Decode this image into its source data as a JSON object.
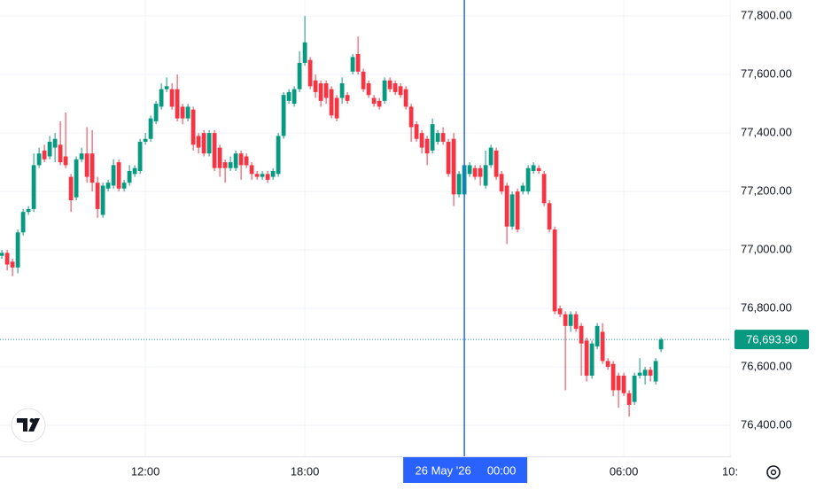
{
  "chart_data": {
    "type": "candlestick",
    "up_color": "#089981",
    "down_color": "#f23645",
    "grid": true,
    "grid_color": "#f0f3fa",
    "xlim": [
      6.53,
      34.03
    ],
    "ylim": [
      76294,
      77855
    ],
    "xticks": [
      {
        "value": 12,
        "label": "12:00"
      },
      {
        "value": 18,
        "label": "18:00"
      },
      {
        "value": 30,
        "label": "06:00"
      },
      {
        "value": 34,
        "label": "10:"
      }
    ],
    "yticks": [
      {
        "value": 76400,
        "label": "76,400.00"
      },
      {
        "value": 76600,
        "label": "76,600.00"
      },
      {
        "value": 76800,
        "label": "76,800.00"
      },
      {
        "value": 77000,
        "label": "77,000.00"
      },
      {
        "value": 77200,
        "label": "77,200.00"
      },
      {
        "value": 77400,
        "label": "77,400.00"
      },
      {
        "value": 77600,
        "label": "77,600.00"
      },
      {
        "value": 77800,
        "label": "77,800.00"
      }
    ],
    "crosshair": {
      "value": 24,
      "date_label": "26 May '26",
      "time_label": "00:00",
      "color": "#2962ff"
    },
    "last_price": {
      "value": 76693.9,
      "label": "76,693.90"
    },
    "x": [
      6.6,
      6.8,
      7,
      7.2,
      7.4,
      7.6,
      7.8,
      8,
      8.2,
      8.4,
      8.6,
      8.8,
      9,
      9.2,
      9.4,
      9.6,
      9.8,
      10,
      10.2,
      10.4,
      10.6,
      10.8,
      11,
      11.2,
      11.4,
      11.6,
      11.8,
      12,
      12.2,
      12.4,
      12.6,
      12.8,
      13,
      13.2,
      13.4,
      13.6,
      13.8,
      14,
      14.2,
      14.4,
      14.6,
      14.8,
      15,
      15.2,
      15.4,
      15.6,
      15.8,
      16,
      16.2,
      16.4,
      16.6,
      16.8,
      17,
      17.2,
      17.4,
      17.6,
      17.8,
      18,
      18.2,
      18.4,
      18.6,
      18.8,
      19,
      19.2,
      19.4,
      19.6,
      19.8,
      20,
      20.2,
      20.4,
      20.6,
      20.8,
      21,
      21.2,
      21.4,
      21.6,
      21.8,
      22,
      22.2,
      22.4,
      22.6,
      22.8,
      23,
      23.2,
      23.4,
      23.6,
      23.8,
      24,
      24.2,
      24.4,
      24.6,
      24.8,
      25,
      25.2,
      25.4,
      25.6,
      25.8,
      26,
      26.2,
      26.4,
      26.6,
      26.8,
      27,
      27.2,
      27.4,
      27.6,
      27.8,
      28,
      28.2,
      28.4,
      28.6,
      28.8,
      29,
      29.2,
      29.4,
      29.6,
      29.8,
      30,
      30.2,
      30.4,
      30.6,
      30.8,
      31,
      31.2,
      31.4
    ],
    "open": [
      76980,
      76990,
      76960,
      76940,
      77060,
      77130,
      77140,
      77290,
      77340,
      77320,
      77350,
      77360,
      77320,
      77250,
      77180,
      77310,
      77330,
      77330,
      77230,
      77120,
      77210,
      77220,
      77300,
      77210,
      77230,
      77260,
      77270,
      77370,
      77380,
      77440,
      77490,
      77550,
      77550,
      77550,
      77490,
      77450,
      77480,
      77390,
      77400,
      77330,
      77400,
      77350,
      77300,
      77280,
      77280,
      77330,
      77320,
      77290,
      77260,
      77250,
      77260,
      77250,
      77260,
      77390,
      77510,
      77500,
      77550,
      77640,
      77650,
      77580,
      77570,
      77570,
      77550,
      77520,
      77520,
      77530,
      77610,
      77670,
      77610,
      77570,
      77520,
      77510,
      77510,
      77580,
      77570,
      77560,
      77550,
      77490,
      77430,
      77400,
      77380,
      77340,
      77370,
      77400,
      77370,
      77380,
      77190,
      77190,
      77260,
      77280,
      77280,
      77220,
      77290,
      77340,
      77260,
      77220,
      77080,
      77200,
      77200,
      77200,
      77270,
      77280,
      77260,
      77160,
      77070,
      76800,
      76780,
      76740,
      76780,
      76740,
      76690,
      76570,
      76670,
      76720,
      76620,
      76610,
      76570,
      76570,
      76510,
      76480,
      76570,
      76570,
      76590,
      76550,
      76660
    ],
    "high": [
      77000,
      77000,
      76970,
      77070,
      77140,
      77150,
      77330,
      77350,
      77360,
      77390,
      77400,
      77440,
      77470,
      77260,
      77320,
      77350,
      77420,
      77410,
      77250,
      77230,
      77240,
      77310,
      77310,
      77240,
      77290,
      77290,
      77380,
      77400,
      77460,
      77510,
      77570,
      77590,
      77570,
      77600,
      77500,
      77500,
      77490,
      77400,
      77410,
      77410,
      77410,
      77360,
      77310,
      77320,
      77340,
      77340,
      77330,
      77300,
      77270,
      77270,
      77270,
      77280,
      77400,
      77540,
      77550,
      77560,
      77680,
      77800,
      77660,
      77600,
      77580,
      77580,
      77560,
      77530,
      77590,
      77540,
      77670,
      77730,
      77620,
      77580,
      77530,
      77520,
      77590,
      77590,
      77580,
      77570,
      77560,
      77500,
      77440,
      77410,
      77390,
      77450,
      77410,
      77420,
      77380,
      77400,
      77270,
      77300,
      77300,
      77290,
      77290,
      77340,
      77360,
      77350,
      77270,
      77230,
      77200,
      77210,
      77230,
      77290,
      77300,
      77290,
      77270,
      77170,
      77080,
      76810,
      76790,
      76790,
      76790,
      76750,
      76700,
      76690,
      76750,
      76750,
      76630,
      76620,
      76580,
      76580,
      76520,
      76580,
      76630,
      76600,
      76600,
      76630,
      76700
    ],
    "low": [
      76970,
      76930,
      76910,
      76920,
      77050,
      77120,
      77130,
      77280,
      77300,
      77310,
      77300,
      77290,
      77280,
      77130,
      77170,
      77300,
      77230,
      77200,
      77110,
      77110,
      77200,
      77210,
      77200,
      77200,
      77220,
      77250,
      77260,
      77360,
      77370,
      77430,
      77480,
      77540,
      77480,
      77440,
      77430,
      77440,
      77340,
      77330,
      77320,
      77320,
      77270,
      77250,
      77230,
      77270,
      77270,
      77240,
      77280,
      77240,
      77240,
      77240,
      77230,
      77240,
      77250,
      77380,
      77500,
      77490,
      77540,
      77630,
      77550,
      77520,
      77490,
      77500,
      77450,
      77440,
      77500,
      77500,
      77600,
      77600,
      77540,
      77520,
      77490,
      77480,
      77500,
      77540,
      77530,
      77520,
      77480,
      77370,
      77370,
      77330,
      77290,
      77330,
      77360,
      77360,
      77250,
      77150,
      77180,
      77180,
      77250,
      77240,
      77220,
      77210,
      77280,
      77240,
      77190,
      77020,
      77070,
      77060,
      77190,
      77190,
      77260,
      77260,
      77150,
      77060,
      76780,
      76770,
      76520,
      76720,
      76720,
      76570,
      76550,
      76560,
      76660,
      76610,
      76590,
      76500,
      76460,
      76500,
      76430,
      76470,
      76560,
      76540,
      76550,
      76540,
      76650
    ],
    "close": [
      76990,
      76950,
      76940,
      77060,
      77130,
      77140,
      77290,
      77330,
      77310,
      77370,
      77380,
      77300,
      77290,
      77170,
      77310,
      77330,
      77250,
      77230,
      77140,
      77220,
      77230,
      77290,
      77210,
      77230,
      77270,
      77280,
      77370,
      77380,
      77450,
      77500,
      77550,
      77560,
      77490,
      77450,
      77450,
      77490,
      77360,
      77350,
      77330,
      77400,
      77280,
      77280,
      77280,
      77300,
      77330,
      77290,
      77290,
      77260,
      77250,
      77260,
      77240,
      77270,
      77390,
      77530,
      77540,
      77550,
      77640,
      77710,
      77560,
      77540,
      77510,
      77520,
      77460,
      77450,
      77570,
      77510,
      77660,
      77610,
      77550,
      77530,
      77500,
      77490,
      77580,
      77550,
      77540,
      77530,
      77490,
      77420,
      77380,
      77350,
      77330,
      77430,
      77400,
      77370,
      77260,
      77190,
      77260,
      77290,
      77290,
      77250,
      77250,
      77290,
      77350,
      77250,
      77200,
      77080,
      77190,
      77070,
      77220,
      77280,
      77290,
      77270,
      77160,
      77070,
      76790,
      76780,
      76740,
      76780,
      76730,
      76680,
      76570,
      76680,
      76740,
      76620,
      76600,
      76520,
      76520,
      76510,
      76470,
      76570,
      76580,
      76590,
      76570,
      76620,
      76693.9
    ]
  }
}
